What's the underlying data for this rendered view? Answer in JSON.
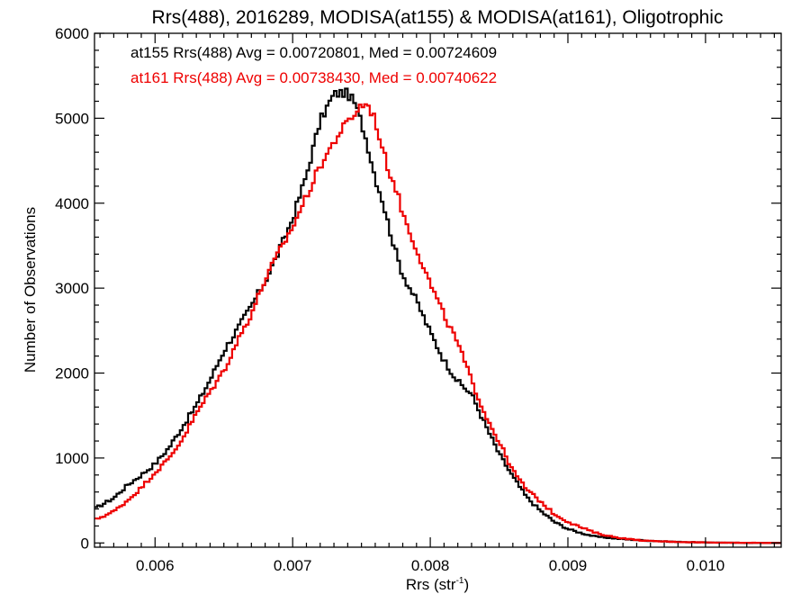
{
  "chart_data": {
    "type": "line",
    "title": "Rrs(488), 2016289, MODISA(at155) & MODISA(at161), Oligotrophic",
    "xlabel_main": "Rrs (str",
    "xlabel_sup": "-1",
    "xlabel_close": ")",
    "ylabel": "Number of Observations",
    "xlim": [
      0.00556,
      0.01055
    ],
    "ylim": [
      -50,
      6000
    ],
    "xticks": [
      0.006,
      0.007,
      0.008,
      0.009,
      0.01
    ],
    "xtick_labels": [
      "0.006",
      "0.007",
      "0.008",
      "0.009",
      "0.010"
    ],
    "yticks": [
      0,
      1000,
      2000,
      3000,
      4000,
      5000,
      6000
    ],
    "ytick_labels": [
      "0",
      "1000",
      "2000",
      "3000",
      "4000",
      "5000",
      "6000"
    ],
    "grid": false,
    "legend_position": "top-left",
    "series": [
      {
        "name": "at155",
        "label": "at155 Rrs(488) Avg = 0.00720801, Med = 0.00724609",
        "color": "#000000",
        "step": true,
        "x": [
          0.00556,
          0.0057,
          0.0058,
          0.0059,
          0.006,
          0.0061,
          0.0062,
          0.0063,
          0.0064,
          0.0065,
          0.0066,
          0.0067,
          0.0068,
          0.0069,
          0.007,
          0.0071,
          0.0072,
          0.00725,
          0.0073,
          0.00735,
          0.0074,
          0.00745,
          0.0075,
          0.00755,
          0.0076,
          0.00765,
          0.0077,
          0.00775,
          0.0078,
          0.0079,
          0.008,
          0.0081,
          0.0082,
          0.0083,
          0.0084,
          0.0085,
          0.0086,
          0.0087,
          0.0088,
          0.0089,
          0.009,
          0.0091,
          0.0092,
          0.0094,
          0.0096,
          0.0098,
          0.01,
          0.0102,
          0.01055
        ],
        "y": [
          400,
          530,
          680,
          800,
          930,
          1120,
          1370,
          1620,
          1920,
          2260,
          2520,
          2790,
          3080,
          3430,
          3820,
          4330,
          4970,
          5130,
          5280,
          5300,
          5290,
          5180,
          4950,
          4650,
          4300,
          4050,
          3720,
          3420,
          3160,
          2850,
          2480,
          2150,
          1900,
          1750,
          1390,
          1050,
          780,
          540,
          380,
          250,
          165,
          115,
          75,
          45,
          25,
          12,
          6,
          2,
          0
        ]
      },
      {
        "name": "at161",
        "label": "at161 Rrs(488) Avg = 0.00738430, Med = 0.00740622",
        "color": "#ee0000",
        "step": true,
        "x": [
          0.00556,
          0.0057,
          0.0058,
          0.0059,
          0.006,
          0.0061,
          0.0062,
          0.0063,
          0.0064,
          0.0065,
          0.0066,
          0.0067,
          0.0068,
          0.0069,
          0.007,
          0.0071,
          0.0072,
          0.0073,
          0.00735,
          0.0074,
          0.00745,
          0.0075,
          0.00755,
          0.0076,
          0.00765,
          0.0077,
          0.00775,
          0.0078,
          0.0079,
          0.008,
          0.0081,
          0.0082,
          0.0083,
          0.0084,
          0.0085,
          0.0086,
          0.0087,
          0.0088,
          0.0089,
          0.009,
          0.0091,
          0.0092,
          0.0093,
          0.0094,
          0.0095,
          0.0096,
          0.0098,
          0.01,
          0.0102,
          0.01055
        ],
        "y": [
          270,
          370,
          500,
          650,
          830,
          990,
          1230,
          1520,
          1780,
          2030,
          2380,
          2700,
          3100,
          3420,
          3720,
          4080,
          4440,
          4720,
          4850,
          4950,
          5050,
          5160,
          5150,
          4980,
          4650,
          4380,
          4180,
          3880,
          3460,
          3050,
          2680,
          2350,
          1910,
          1510,
          1190,
          850,
          630,
          490,
          340,
          250,
          180,
          120,
          80,
          55,
          35,
          22,
          12,
          6,
          3,
          0
        ]
      }
    ]
  }
}
